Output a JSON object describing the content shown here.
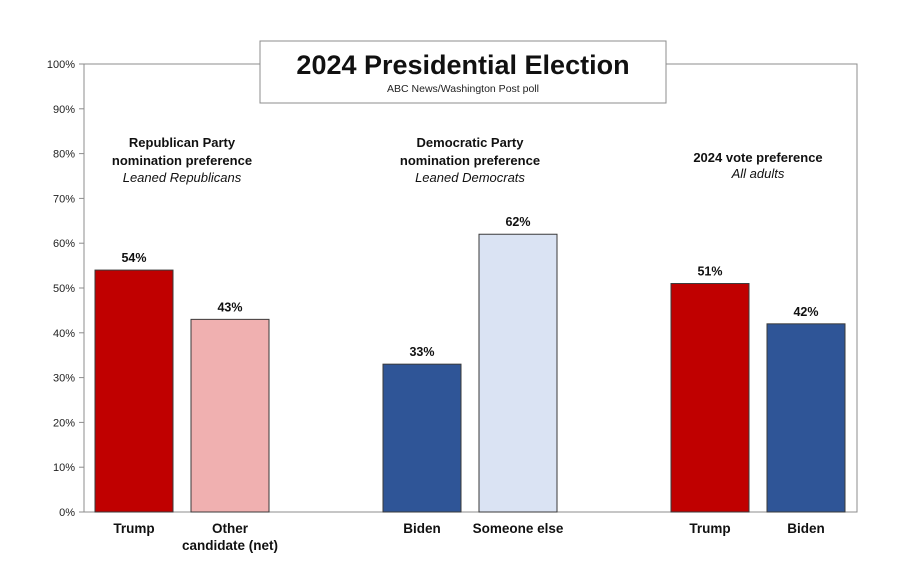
{
  "chart_data": {
    "type": "bar",
    "title": "2024 Presidential Election",
    "subtitle": "ABC News/Washington Post poll",
    "ylim": [
      0,
      100
    ],
    "y_ticks": [
      "0%",
      "10%",
      "20%",
      "30%",
      "40%",
      "50%",
      "60%",
      "70%",
      "80%",
      "90%",
      "100%"
    ],
    "grid": false,
    "groups": [
      {
        "title_lines": [
          "Republican Party",
          "nomination preference"
        ],
        "subtitle": "Leaned Republicans",
        "bars": [
          {
            "category_lines": [
              "Trump"
            ],
            "value": 54,
            "label": "54%",
            "color": "#c00000"
          },
          {
            "category_lines": [
              "Other",
              "candidate (net)"
            ],
            "value": 43,
            "label": "43%",
            "color": "#f0b0b0"
          }
        ]
      },
      {
        "title_lines": [
          "Democratic Party",
          "nomination preference"
        ],
        "subtitle": "Leaned Democrats",
        "bars": [
          {
            "category_lines": [
              "Biden"
            ],
            "value": 33,
            "label": "33%",
            "color": "#2f5597"
          },
          {
            "category_lines": [
              "Someone else"
            ],
            "value": 62,
            "label": "62%",
            "color": "#dae3f3"
          }
        ]
      },
      {
        "title_lines": [
          "2024 vote preference"
        ],
        "subtitle": "All adults",
        "bars": [
          {
            "category_lines": [
              "Trump"
            ],
            "value": 51,
            "label": "51%",
            "color": "#c00000"
          },
          {
            "category_lines": [
              "Biden"
            ],
            "value": 42,
            "label": "42%",
            "color": "#2f5597"
          }
        ]
      }
    ]
  }
}
